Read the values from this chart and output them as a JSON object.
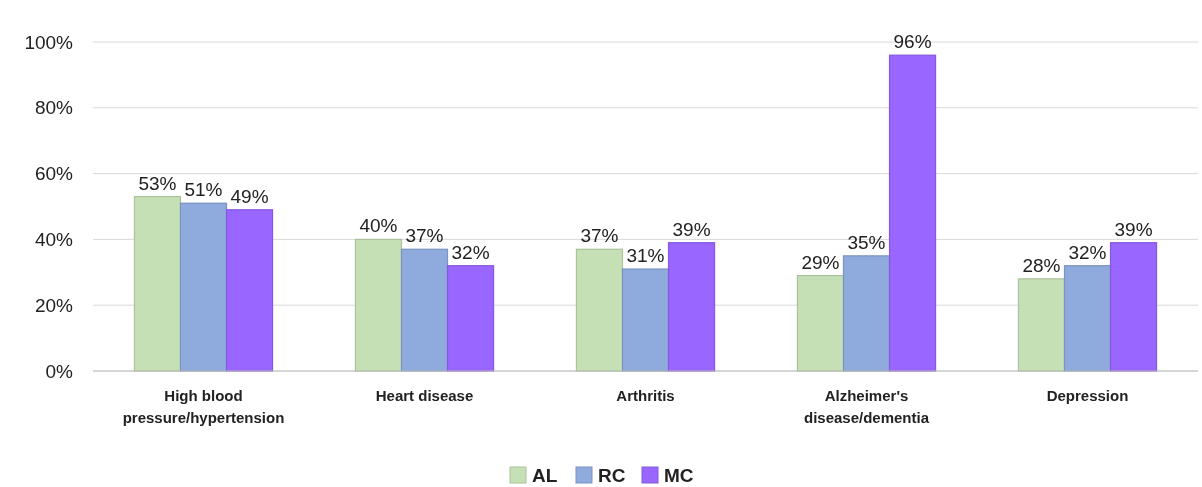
{
  "chart_data": {
    "type": "bar",
    "categories": [
      "High blood pressure/hypertension",
      "Heart disease",
      "Arthritis",
      "Alzheimer's disease/dementia",
      "Depression"
    ],
    "series": [
      {
        "name": "AL",
        "color": "#c5e0b4",
        "values": [
          53,
          40,
          37,
          29,
          28
        ],
        "value_labels": [
          "53%",
          "40%",
          "37%",
          "29%",
          "28%"
        ]
      },
      {
        "name": "RC",
        "color": "#8faadc",
        "values": [
          51,
          37,
          31,
          35,
          32
        ],
        "value_labels": [
          "51%",
          "37%",
          "31%",
          "35%",
          "32%"
        ]
      },
      {
        "name": "MC",
        "color": "#9966ff",
        "values": [
          49,
          32,
          39,
          96,
          39
        ],
        "value_labels": [
          "49%",
          "32%",
          "39%",
          "96%",
          "39%"
        ]
      }
    ],
    "ylim": [
      0,
      100
    ],
    "yticks": [
      {
        "value": 0,
        "label": "0%"
      },
      {
        "value": 20,
        "label": "20%"
      },
      {
        "value": 40,
        "label": "40%"
      },
      {
        "value": 60,
        "label": "60%"
      },
      {
        "value": 80,
        "label": "80%"
      },
      {
        "value": 100,
        "label": "100%"
      }
    ],
    "grid": "y",
    "legend": "bottom"
  }
}
